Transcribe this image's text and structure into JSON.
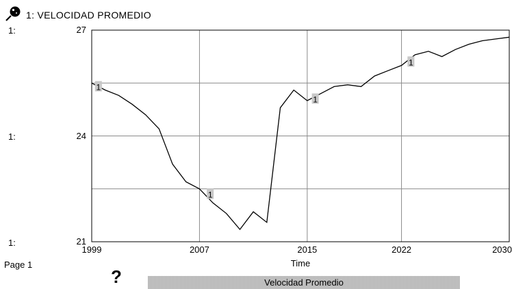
{
  "header": {
    "icon": "pin-icon",
    "title": "1: VELOCIDAD PROMEDIO"
  },
  "axis_prefixes": [
    "1:",
    "1:",
    "1:"
  ],
  "footer": {
    "page_label": "Page 1",
    "help_icon": "?",
    "legend_label": "Velocidad Promedio"
  },
  "colors": {
    "line": "#000000",
    "grid": "#8a8a8a",
    "marker_bg": "#c8c8c8"
  },
  "chart_data": {
    "type": "line",
    "title": "1: VELOCIDAD PROMEDIO",
    "xlabel": "Time",
    "ylabel": "",
    "xlim": [
      1999,
      2030
    ],
    "ylim": [
      21,
      27
    ],
    "x_ticks": [
      1999,
      2007,
      2015,
      2022,
      2030
    ],
    "y_ticks": [
      21,
      24,
      27
    ],
    "grid": true,
    "series": [
      {
        "name": "1",
        "x": [
          1999,
          2000,
          2001,
          2002,
          2003,
          2004,
          2005,
          2006,
          2007,
          2008,
          2009,
          2010,
          2011,
          2012,
          2013,
          2014,
          2015,
          2016,
          2017,
          2018,
          2019,
          2020,
          2021,
          2022,
          2023,
          2024,
          2025,
          2026,
          2027,
          2028,
          2029,
          2030
        ],
        "y": [
          25.5,
          25.3,
          25.15,
          24.9,
          24.6,
          24.2,
          23.2,
          22.7,
          22.5,
          22.1,
          21.8,
          21.35,
          21.85,
          21.55,
          24.8,
          25.3,
          25.0,
          25.2,
          25.4,
          25.45,
          25.4,
          25.7,
          25.85,
          26.0,
          26.3,
          26.4,
          26.25,
          26.45,
          26.6,
          26.7,
          26.75,
          26.8
        ],
        "markers": [
          {
            "x": 1999.5,
            "y": 25.4,
            "label": "1"
          },
          {
            "x": 2007.8,
            "y": 22.35,
            "label": "1"
          },
          {
            "x": 2015.6,
            "y": 25.05,
            "label": "1"
          },
          {
            "x": 2022.7,
            "y": 26.1,
            "label": "1"
          }
        ]
      }
    ]
  }
}
